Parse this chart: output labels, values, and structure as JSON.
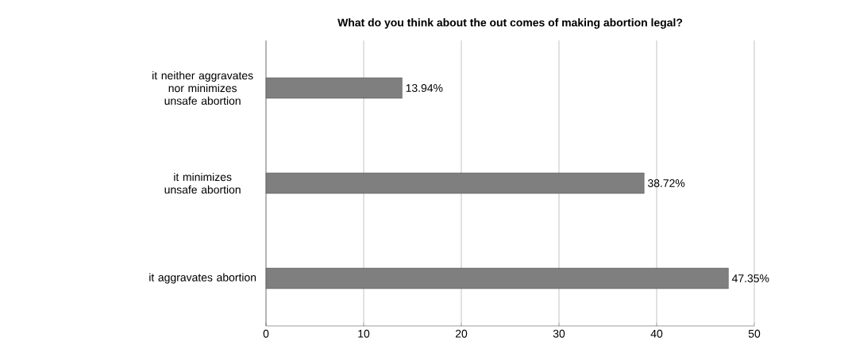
{
  "chart_data": {
    "type": "bar",
    "orientation": "horizontal",
    "title": "What do you think about the out comes of making abortion legal?",
    "categories": [
      "it neither aggravates nor minimizes unsafe abortion",
      "it minimizes unsafe abortion",
      "it aggravates abortion"
    ],
    "values": [
      13.94,
      38.72,
      47.35
    ],
    "value_labels": [
      "13.94%",
      "38.72%",
      "47.35%"
    ],
    "color": "#7f7f7f",
    "xlim": [
      0,
      50
    ],
    "xticks": [
      0,
      10,
      20,
      30,
      40,
      50
    ],
    "grid": "x"
  }
}
